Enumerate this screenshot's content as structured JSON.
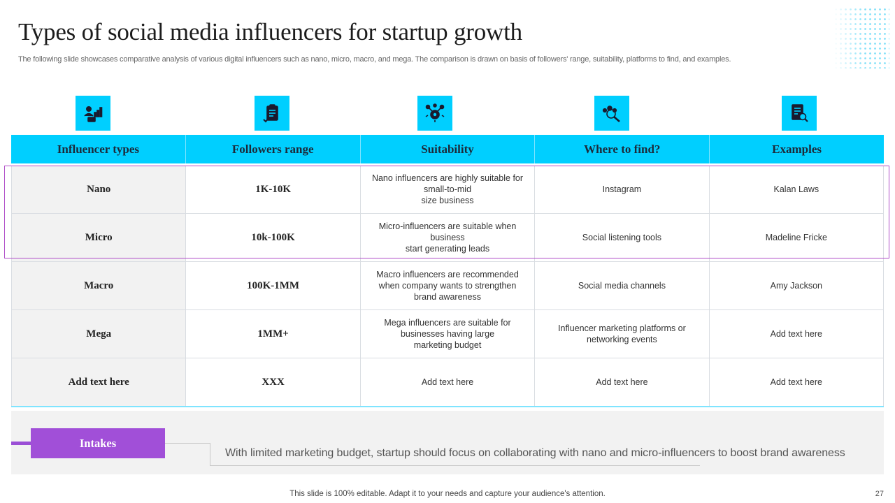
{
  "title": "Types of social media influencers for startup growth",
  "subtitle": "The following slide showcases comparative analysis of various digital influencers such as nano, micro, macro, and mega. The comparison is drawn on basis of followers' range, suitability, platforms to find, and examples.",
  "icons": [
    "influencer-stats-icon",
    "clipboard-checklist-icon",
    "gear-network-icon",
    "group-search-icon",
    "document-search-icon"
  ],
  "colors": {
    "accent": "#00cfff",
    "purple": "#a14fd8",
    "highlight_border": "#b04ec8",
    "first_col_bg": "#f2f2f2"
  },
  "table": {
    "headers": [
      "Influencer types",
      "Followers range",
      "Suitability",
      "Where to find?",
      "Examples"
    ],
    "rows": [
      [
        "Nano",
        "1K-10K",
        "Nano influencers are highly suitable for\nsmall-to-mid\nsize business",
        "Instagram",
        "Kalan Laws"
      ],
      [
        "Micro",
        "10k-100K",
        "Micro-influencers are suitable when\nbusiness\nstart generating leads",
        "Social listening tools",
        "Madeline Fricke"
      ],
      [
        "Macro",
        "100K-1MM",
        "Macro influencers are recommended\nwhen company wants to strengthen\nbrand awareness",
        "Social media channels",
        "Amy Jackson"
      ],
      [
        "Mega",
        "1MM+",
        "Mega influencers are suitable for\nbusinesses having large\nmarketing budget",
        "Influencer marketing platforms or\nnetworking events",
        "Add text here"
      ],
      [
        "Add text here",
        "XXX",
        "Add text here",
        "Add text here",
        "Add text here"
      ]
    ]
  },
  "intakes": {
    "label": "Intakes",
    "text": "With limited marketing budget, startup should focus on collaborating with nano and micro-influencers  to boost brand awareness"
  },
  "footer": "This slide is 100% editable. Adapt it to your needs and capture your audience's attention.",
  "page_number": "27"
}
